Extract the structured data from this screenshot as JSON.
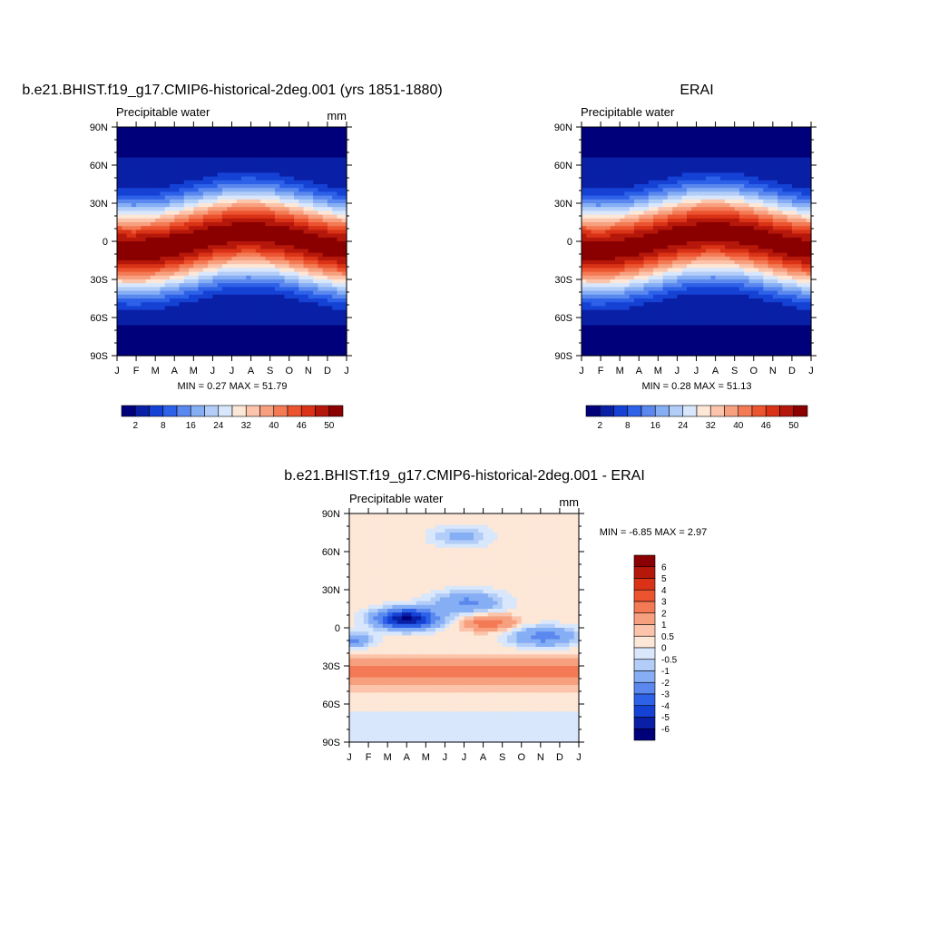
{
  "chart_data": [
    {
      "type": "heatmap",
      "title": "b.e21.BHIST.f19_g17.CMIP6-historical-2deg.001 (yrs 1851-1880)",
      "left_subtitle": "Precipitable water",
      "right_subtitle": "mm",
      "x_tick_labels": [
        "J",
        "F",
        "M",
        "A",
        "M",
        "J",
        "J",
        "A",
        "S",
        "O",
        "N",
        "D",
        "J"
      ],
      "y_tick_labels": [
        "90N",
        "60N",
        "30N",
        "0",
        "30S",
        "60S",
        "90S"
      ],
      "y_ticks": [
        90,
        60,
        30,
        0,
        -30,
        -60,
        -90
      ],
      "xlim": [
        0,
        12
      ],
      "ylim": [
        -90,
        90
      ],
      "stats_text": "MIN =   0.27 MAX =  51.79",
      "min": 0.27,
      "max": 51.79,
      "colorbar_levels": [
        2,
        4,
        6,
        8,
        10,
        12,
        14,
        16,
        18,
        20,
        22,
        24,
        26,
        28,
        30,
        32,
        34,
        36,
        38,
        40,
        42,
        44,
        46,
        48,
        50
      ],
      "colorbar_tick_labels": [
        "2",
        "8",
        "16",
        "24",
        "32",
        "40",
        "46",
        "50"
      ],
      "colorbar_colors": [
        "#00007b",
        "#0920a6",
        "#1542d4",
        "#2d61e8",
        "#5a88ef",
        "#86aef4",
        "#b2cdf8",
        "#d8e7fb",
        "#fde7d7",
        "#fbc4ab",
        "#f7a07f",
        "#f37a55",
        "#ec5430",
        "#d93216",
        "#b5180a",
        "#8a0000"
      ]
    },
    {
      "type": "heatmap",
      "title": "ERAI",
      "left_subtitle": "Precipitable water",
      "right_subtitle": "",
      "x_tick_labels": [
        "J",
        "F",
        "M",
        "A",
        "M",
        "J",
        "J",
        "A",
        "S",
        "O",
        "N",
        "D",
        "J"
      ],
      "y_tick_labels": [
        "90N",
        "60N",
        "30N",
        "0",
        "30S",
        "60S",
        "90S"
      ],
      "y_ticks": [
        90,
        60,
        30,
        0,
        -30,
        -60,
        -90
      ],
      "xlim": [
        0,
        12
      ],
      "ylim": [
        -90,
        90
      ],
      "stats_text": "MIN =   0.28 MAX =  51.13",
      "min": 0.28,
      "max": 51.13,
      "colorbar_tick_labels": [
        "2",
        "8",
        "16",
        "24",
        "32",
        "40",
        "46",
        "50"
      ],
      "colorbar_colors": [
        "#00007b",
        "#0920a6",
        "#1542d4",
        "#2d61e8",
        "#5a88ef",
        "#86aef4",
        "#b2cdf8",
        "#d8e7fb",
        "#fde7d7",
        "#fbc4ab",
        "#f7a07f",
        "#f37a55",
        "#ec5430",
        "#d93216",
        "#b5180a",
        "#8a0000"
      ]
    },
    {
      "type": "heatmap",
      "title": "b.e21.BHIST.f19_g17.CMIP6-historical-2deg.001 - ERAI",
      "left_subtitle": "Precipitable water",
      "right_subtitle": "mm",
      "x_tick_labels": [
        "J",
        "F",
        "M",
        "A",
        "M",
        "J",
        "J",
        "A",
        "S",
        "O",
        "N",
        "D",
        "J"
      ],
      "y_tick_labels": [
        "90N",
        "60N",
        "30N",
        "0",
        "30S",
        "60S",
        "90S"
      ],
      "y_ticks": [
        90,
        60,
        30,
        0,
        -30,
        -60,
        -90
      ],
      "xlim": [
        0,
        12
      ],
      "ylim": [
        -90,
        90
      ],
      "stats_text": "MIN =  -6.85 MAX =   2.97",
      "min": -6.85,
      "max": 2.97,
      "colorbar_levels": [
        -6,
        -5,
        -4,
        -3,
        -2,
        -1,
        -0.5,
        0,
        0.5,
        1,
        2,
        3,
        4,
        5,
        6
      ],
      "colorbar_tick_labels": [
        "6",
        "5",
        "4",
        "3",
        "2",
        "1",
        "0.5",
        "0",
        "-0.5",
        "-1",
        "-2",
        "-3",
        "-4",
        "-5",
        "-6"
      ],
      "colorbar_colors": [
        "#8a0000",
        "#b5180a",
        "#d93216",
        "#ec5430",
        "#f37a55",
        "#f7a07f",
        "#fbc4ab",
        "#fde7d7",
        "#d8e7fb",
        "#b2cdf8",
        "#86aef4",
        "#5a88ef",
        "#2d61e8",
        "#1542d4",
        "#0920a6",
        "#00007b"
      ]
    }
  ]
}
